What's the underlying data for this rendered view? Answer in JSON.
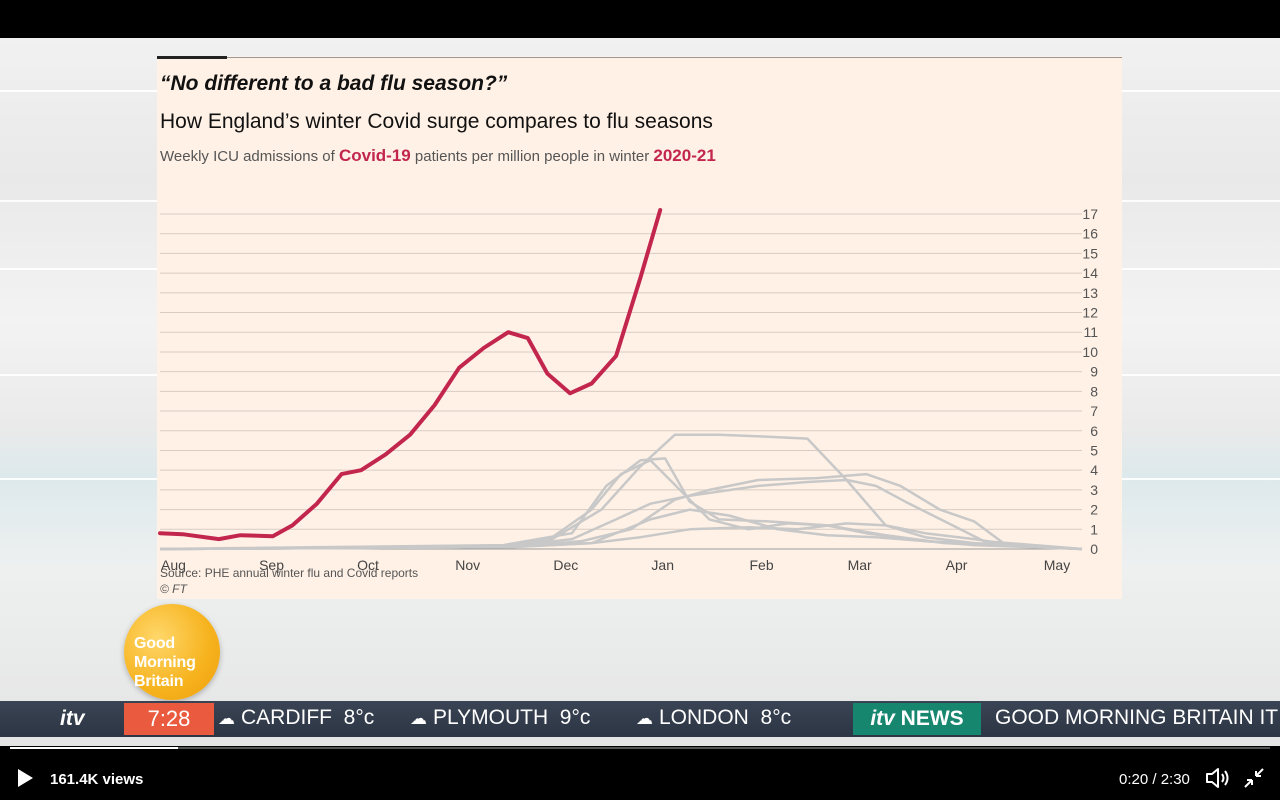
{
  "chart_data": {
    "type": "line",
    "title": "“No different to a bad flu season?”",
    "subtitle": "How England’s winter Covid surge compares to flu seasons",
    "description": {
      "prefix": "Weekly ICU admissions of ",
      "covid": "Covid-19",
      "middle": " patients per million people in winter ",
      "season": "2020-21"
    },
    "source": "Source: PHE annual winter flu and Covid reports",
    "credit": "© FT",
    "x_labels": [
      "Aug",
      "Sep",
      "Oct",
      "Nov",
      "Dec",
      "Jan",
      "Feb",
      "Mar",
      "Apr",
      "May"
    ],
    "y_ticks": [
      0,
      1,
      2,
      3,
      4,
      5,
      6,
      7,
      8,
      9,
      10,
      11,
      12,
      13,
      14,
      15,
      16,
      17
    ],
    "ylim": [
      0,
      17
    ],
    "xlim": [
      0,
      9.4
    ],
    "y_axis_position": "right",
    "grid": true,
    "colors": {
      "covid": "#c2264d",
      "flu": "#c8c8c8",
      "grid": "#d8ccc2"
    },
    "series": [
      {
        "name": "Covid-19",
        "points": [
          [
            0,
            0.8
          ],
          [
            0.23,
            0.75
          ],
          [
            0.6,
            0.5
          ],
          [
            0.82,
            0.7
          ],
          [
            1.15,
            0.65
          ],
          [
            1.35,
            1.2
          ],
          [
            1.6,
            2.3
          ],
          [
            1.85,
            3.8
          ],
          [
            2.05,
            4.0
          ],
          [
            2.3,
            4.8
          ],
          [
            2.55,
            5.8
          ],
          [
            2.8,
            7.3
          ],
          [
            3.05,
            9.2
          ],
          [
            3.3,
            10.2
          ],
          [
            3.55,
            11.0
          ],
          [
            3.75,
            10.7
          ],
          [
            3.95,
            8.9
          ],
          [
            4.18,
            7.9
          ],
          [
            4.4,
            8.4
          ],
          [
            4.65,
            9.8
          ],
          [
            4.9,
            13.8
          ],
          [
            5.1,
            17.2
          ]
        ]
      },
      {
        "points": [
          [
            0,
            0
          ],
          [
            3.5,
            0.1
          ],
          [
            4.0,
            0.5
          ],
          [
            4.5,
            2.0
          ],
          [
            4.9,
            4.2
          ],
          [
            5.25,
            5.8
          ],
          [
            5.7,
            5.8
          ],
          [
            6.2,
            5.7
          ],
          [
            6.6,
            5.6
          ],
          [
            7.0,
            3.5
          ],
          [
            7.4,
            1.2
          ],
          [
            7.8,
            0.6
          ],
          [
            8.3,
            0.3
          ],
          [
            9.4,
            0
          ]
        ]
      },
      {
        "points": [
          [
            0,
            0
          ],
          [
            3.5,
            0.1
          ],
          [
            4.0,
            0.6
          ],
          [
            4.4,
            2.0
          ],
          [
            4.7,
            3.8
          ],
          [
            5.0,
            4.5
          ],
          [
            5.3,
            3.0
          ],
          [
            5.6,
            1.5
          ],
          [
            6.0,
            1.0
          ],
          [
            6.4,
            1.3
          ],
          [
            6.8,
            1.2
          ],
          [
            7.2,
            0.8
          ],
          [
            7.8,
            0.4
          ],
          [
            9.4,
            0
          ]
        ]
      },
      {
        "points": [
          [
            0,
            0
          ],
          [
            3.5,
            0.2
          ],
          [
            4.2,
            0.8
          ],
          [
            4.55,
            3.2
          ],
          [
            4.9,
            4.5
          ],
          [
            5.15,
            4.6
          ],
          [
            5.4,
            2.4
          ],
          [
            5.7,
            1.5
          ],
          [
            6.2,
            1.4
          ],
          [
            6.8,
            1.2
          ],
          [
            7.4,
            0.7
          ],
          [
            8.0,
            0.3
          ],
          [
            9.4,
            0
          ]
        ]
      },
      {
        "points": [
          [
            0,
            0
          ],
          [
            3.5,
            0.1
          ],
          [
            4.2,
            0.5
          ],
          [
            4.65,
            1.5
          ],
          [
            5.0,
            2.3
          ],
          [
            5.4,
            2.7
          ],
          [
            6.1,
            3.2
          ],
          [
            6.6,
            3.4
          ],
          [
            7.0,
            3.5
          ],
          [
            7.3,
            3.2
          ],
          [
            7.6,
            2.4
          ],
          [
            8.0,
            1.4
          ],
          [
            8.4,
            0.4
          ],
          [
            9.4,
            0
          ]
        ]
      },
      {
        "points": [
          [
            0,
            0
          ],
          [
            3.6,
            0.1
          ],
          [
            4.3,
            0.4
          ],
          [
            4.8,
            1.0
          ],
          [
            5.25,
            2.5
          ],
          [
            5.6,
            3.0
          ],
          [
            6.1,
            3.5
          ],
          [
            6.7,
            3.6
          ],
          [
            7.2,
            3.8
          ],
          [
            7.55,
            3.2
          ],
          [
            7.95,
            2.0
          ],
          [
            8.3,
            1.4
          ],
          [
            8.6,
            0.3
          ],
          [
            9.4,
            0
          ]
        ]
      },
      {
        "points": [
          [
            0,
            0
          ],
          [
            3.6,
            0.1
          ],
          [
            4.4,
            0.3
          ],
          [
            4.9,
            0.6
          ],
          [
            5.4,
            1.0
          ],
          [
            6.0,
            1.1
          ],
          [
            6.5,
            1.0
          ],
          [
            7.0,
            1.3
          ],
          [
            7.4,
            1.2
          ],
          [
            7.8,
            0.8
          ],
          [
            8.3,
            0.5
          ],
          [
            8.7,
            0.2
          ],
          [
            9.4,
            0
          ]
        ]
      },
      {
        "points": [
          [
            0,
            0
          ],
          [
            3.6,
            0.1
          ],
          [
            4.4,
            0.3
          ],
          [
            5.0,
            1.5
          ],
          [
            5.4,
            2.0
          ],
          [
            5.8,
            1.7
          ],
          [
            6.3,
            1.0
          ],
          [
            6.8,
            0.7
          ],
          [
            7.3,
            0.6
          ],
          [
            7.8,
            0.4
          ],
          [
            8.3,
            0.2
          ],
          [
            9.4,
            0
          ]
        ]
      }
    ]
  },
  "logo": {
    "lines": [
      "Good",
      "Morning",
      "Britain"
    ]
  },
  "ticker": {
    "brand": "itv",
    "time": "7:28",
    "weather": [
      {
        "city": "CARDIFF",
        "temp": "8°c",
        "icon": "rain-cloud-icon"
      },
      {
        "city": "PLYMOUTH",
        "temp": "9°c",
        "icon": "cloud-icon"
      },
      {
        "city": "LONDON",
        "temp": "8°c",
        "icon": "cloud-icon"
      }
    ],
    "news_badge": {
      "brand": "itv",
      "label": "NEWS"
    },
    "scroll_text": "GOOD MORNING BRITAIN IT"
  },
  "player": {
    "views": "161.4K views",
    "time": "0:20 / 2:30",
    "progress": 0.133
  }
}
